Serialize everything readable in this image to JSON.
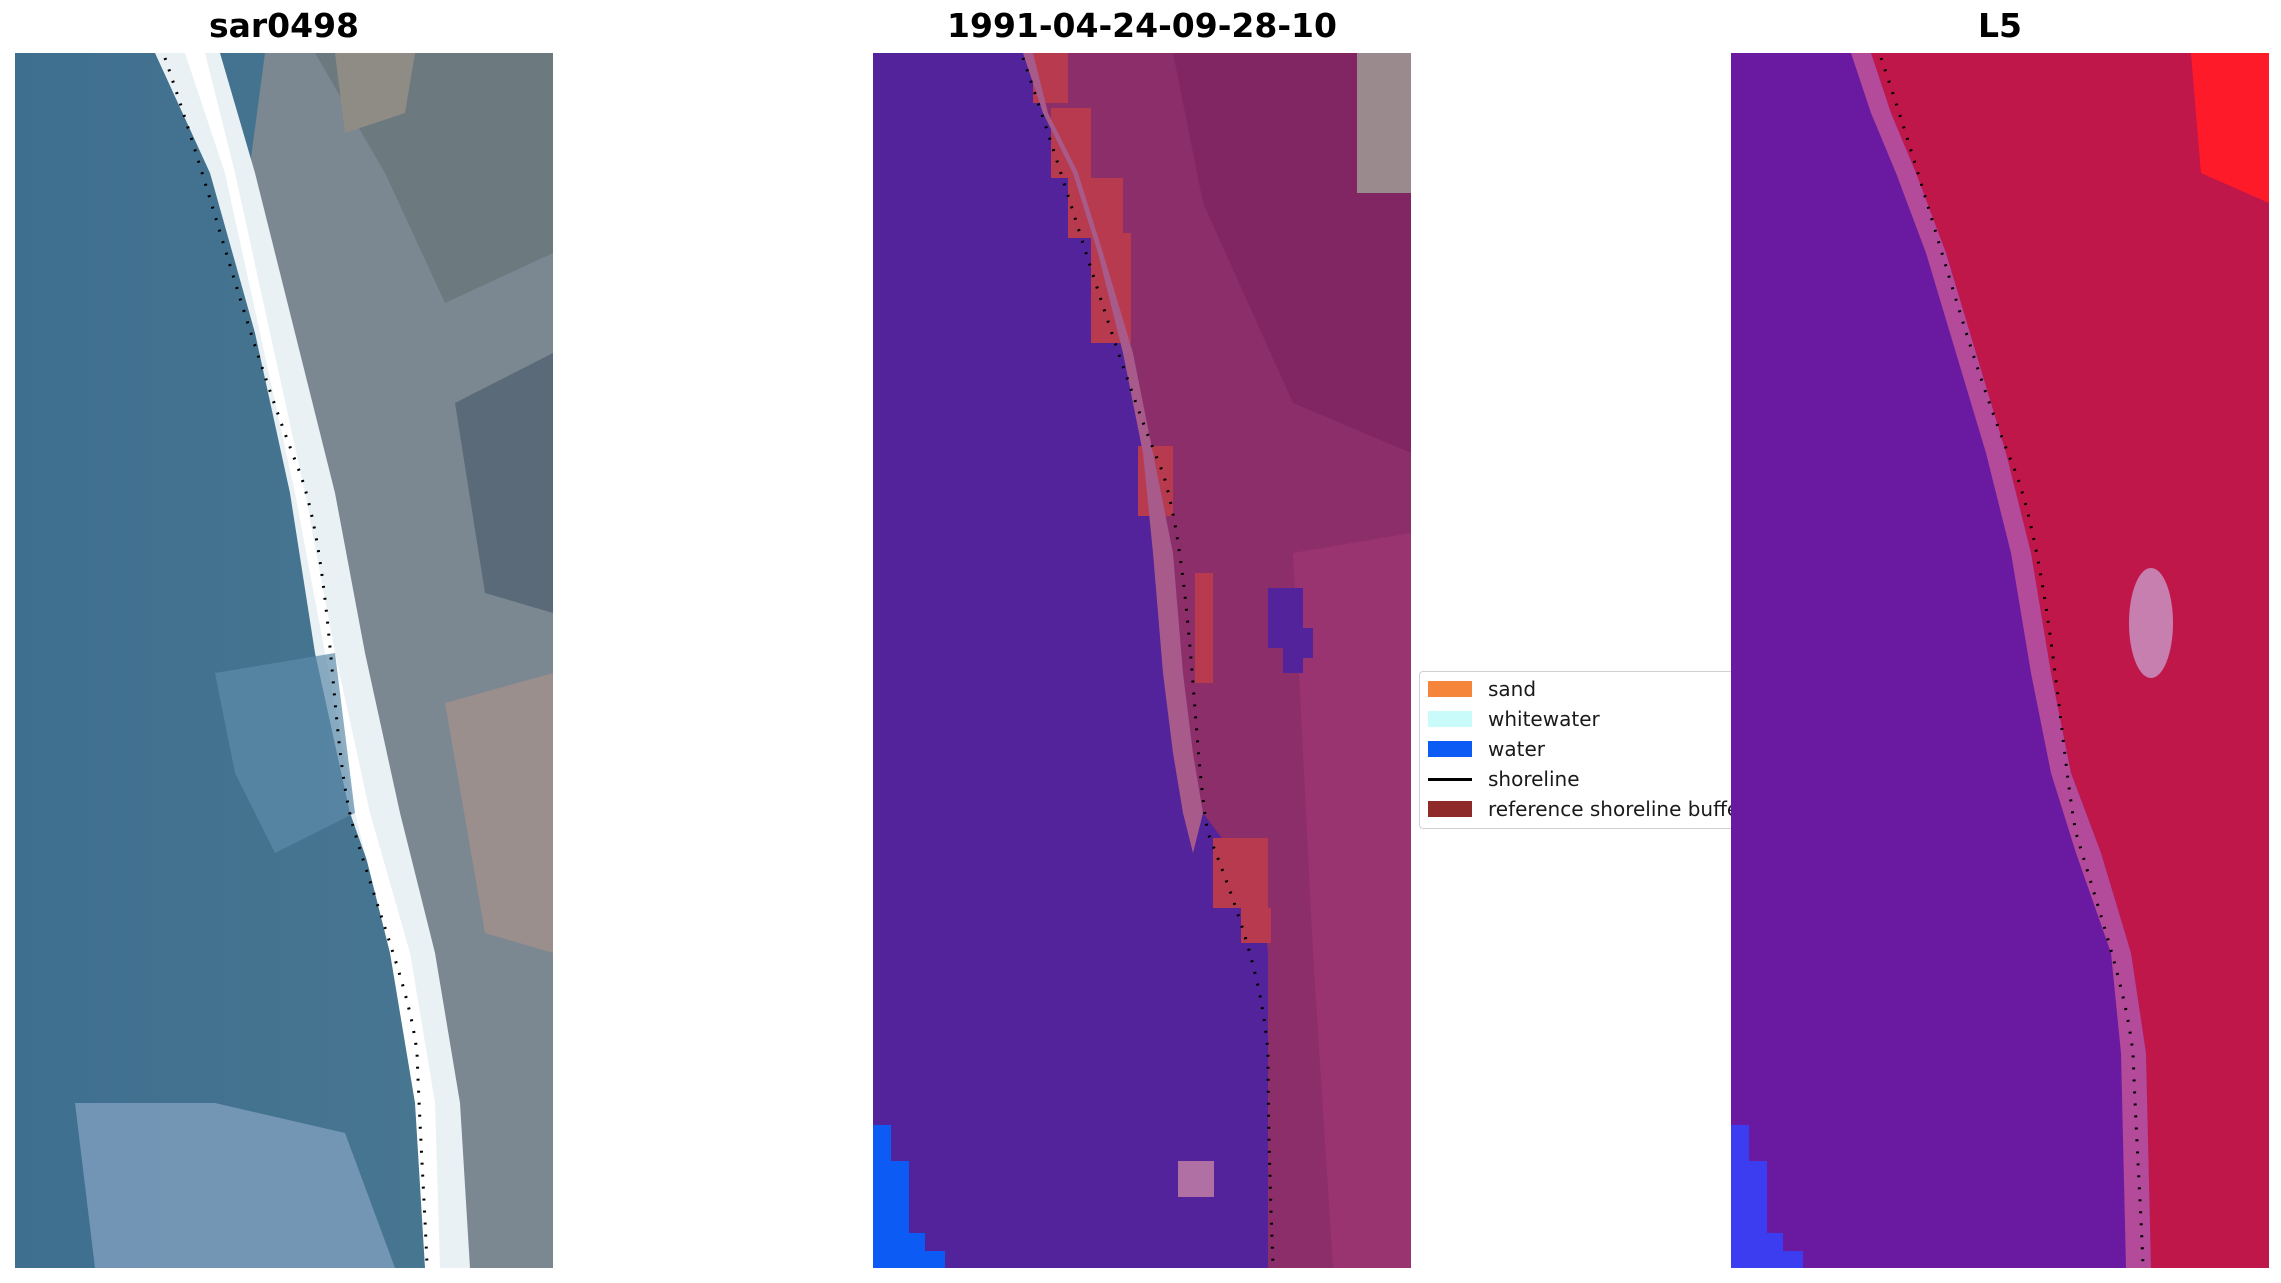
{
  "panels": [
    {
      "title": "sar0498",
      "image_icon": "rgb-satellite-coastline-image"
    },
    {
      "title": "1991-04-24-09-28-10",
      "image_icon": "classified-coastline-image"
    },
    {
      "title": "L5",
      "image_icon": "false-color-coastline-image"
    }
  ],
  "legend": {
    "items": [
      {
        "label": "sand",
        "color": "#f4853a",
        "kind": "patch"
      },
      {
        "label": "whitewater",
        "color": "#c9fbfb",
        "kind": "patch"
      },
      {
        "label": "water",
        "color": "#0b5bf4",
        "kind": "patch"
      },
      {
        "label": "shoreline",
        "color": "#000000",
        "kind": "line"
      },
      {
        "label": "reference shoreline buffer",
        "color": "#8f2a2a",
        "kind": "patch"
      }
    ]
  },
  "colors": {
    "ocean_rgb": "#41708f",
    "surf_white": "#eef4f7",
    "land_gray": "#7d8690",
    "classified_water": "#52239a",
    "classified_land": "#8c2e6a",
    "buffer_red": "#b83a4e",
    "false_color_water": "#6a1aa0",
    "false_color_land": "#c0174a",
    "deep_water_blue": "#0b5bf4"
  }
}
